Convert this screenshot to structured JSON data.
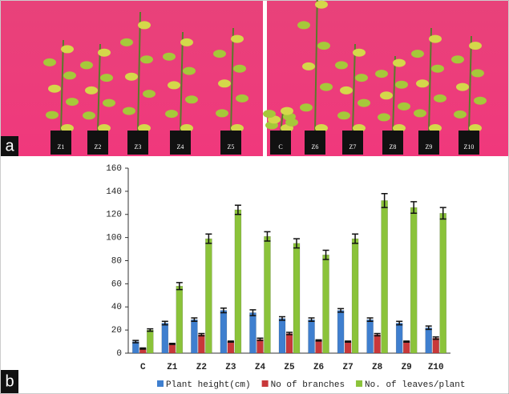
{
  "panel_labels": [
    "a",
    "b"
  ],
  "photo": {
    "left_labels": [
      "Z1",
      "Z2",
      "Z3",
      "Z4",
      "Z5"
    ],
    "right_labels": [
      "C",
      "Z6",
      "Z7",
      "Z8",
      "Z9",
      "Z10"
    ]
  },
  "chart_data": {
    "type": "bar",
    "categories": [
      "C",
      "Z1",
      "Z2",
      "Z3",
      "Z4",
      "Z5",
      "Z6",
      "Z7",
      "Z8",
      "Z9",
      "Z10"
    ],
    "series": [
      {
        "name": "Plant height(cm)",
        "color": "#3f7fcf",
        "values": [
          10,
          26,
          29,
          37,
          35,
          30,
          29,
          37,
          29,
          26,
          22
        ],
        "errors": [
          1,
          1.5,
          1.5,
          2,
          2.5,
          1.5,
          1.5,
          1.5,
          1.5,
          1.5,
          1.5
        ]
      },
      {
        "name": "No of branches",
        "color": "#c8383a",
        "values": [
          4,
          8,
          16,
          10,
          12,
          17,
          11,
          10,
          16,
          10,
          13
        ],
        "errors": [
          0.5,
          0.5,
          1,
          0.5,
          1,
          1,
          0.5,
          0.5,
          1,
          0.5,
          1
        ]
      },
      {
        "name": "No. of leaves/plant",
        "color": "#8bc33a",
        "values": [
          20,
          58,
          99,
          124,
          101,
          95,
          85,
          99,
          132,
          126,
          121
        ],
        "errors": [
          1,
          3,
          4,
          4,
          4,
          4,
          4,
          4,
          6,
          5,
          5
        ]
      }
    ],
    "ylim": [
      0,
      160
    ],
    "yticks": [
      0,
      20,
      40,
      60,
      80,
      100,
      120,
      140,
      160
    ]
  }
}
